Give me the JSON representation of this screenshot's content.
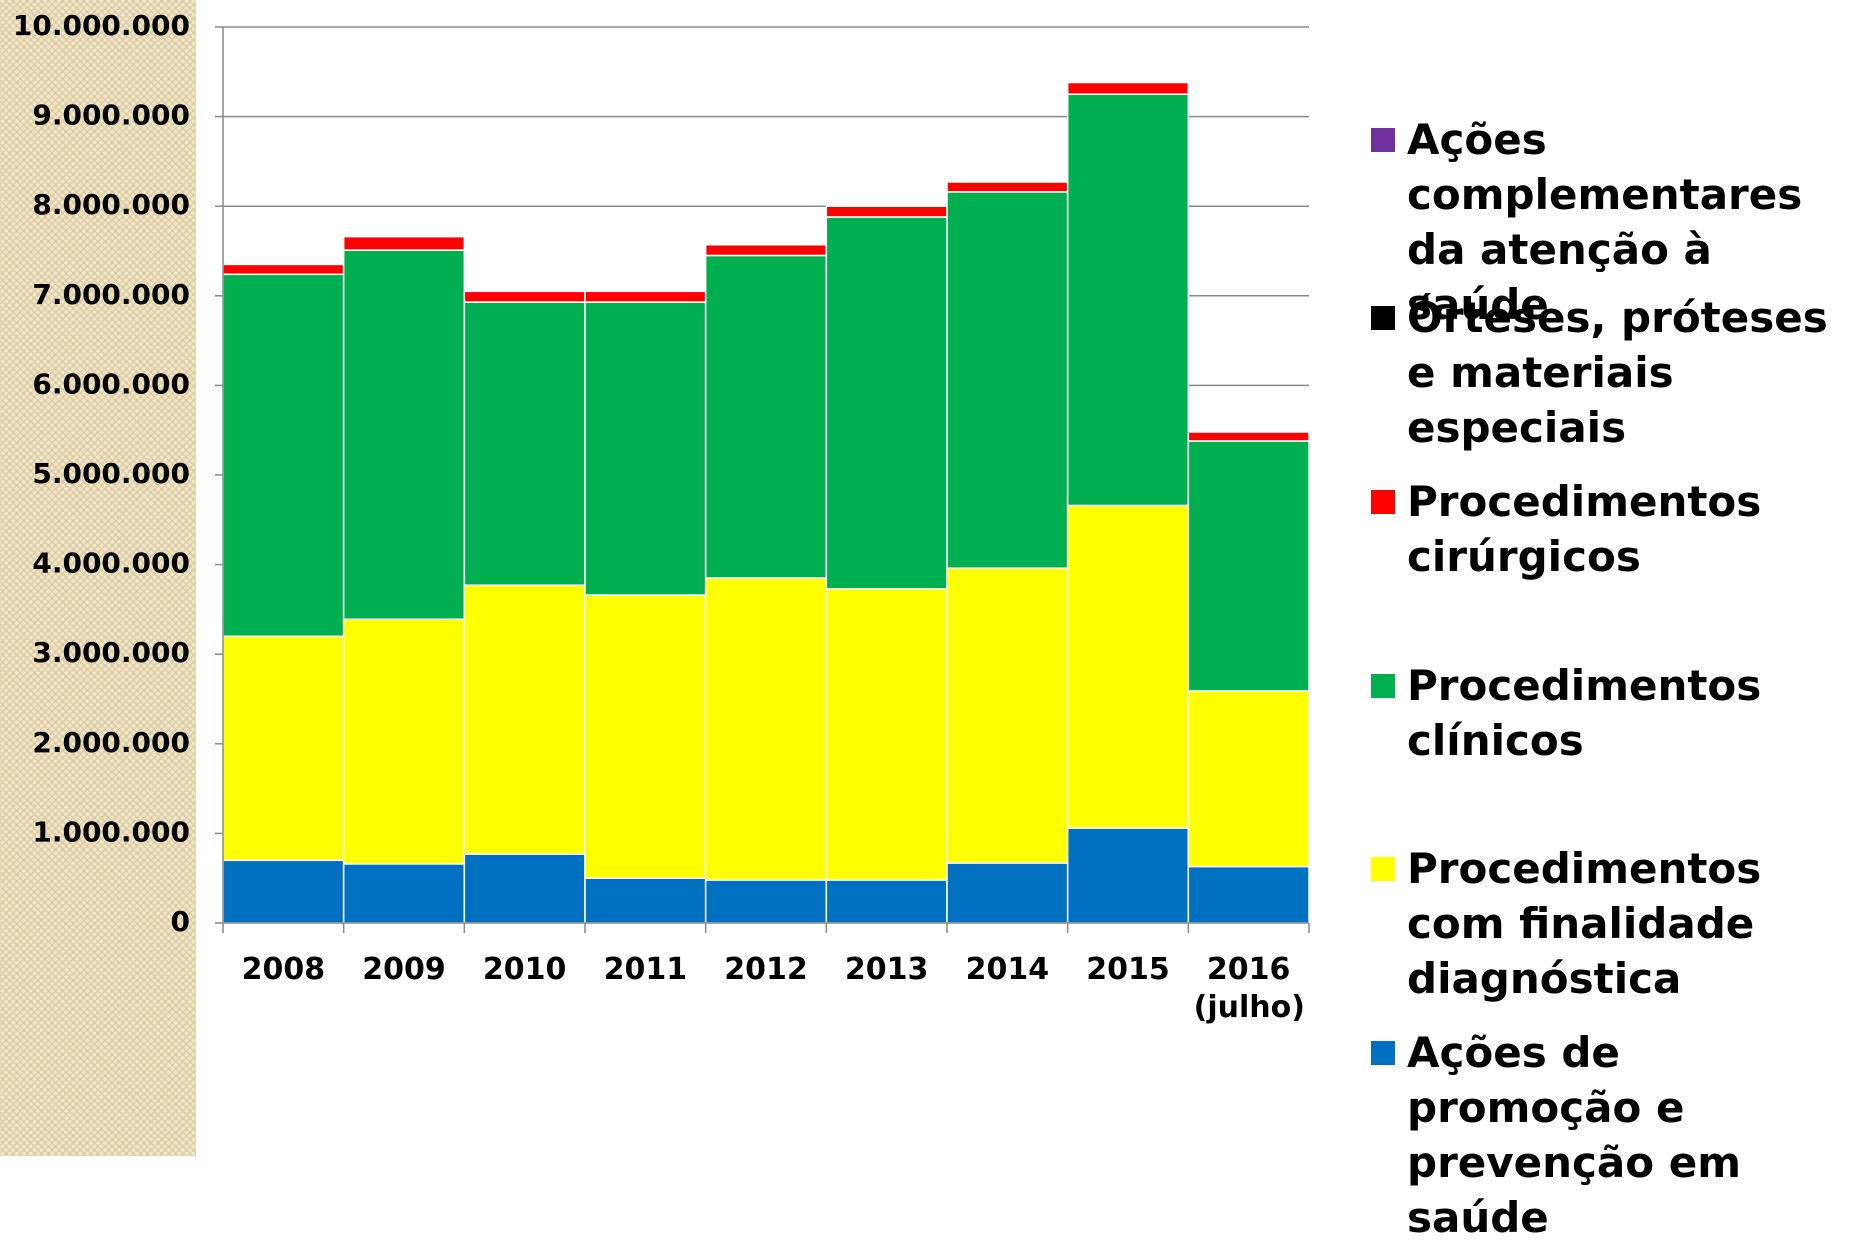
{
  "chart_data": {
    "type": "stacked_bar",
    "categories": [
      "2008",
      "2009",
      "2010",
      "2011",
      "2012",
      "2013",
      "2014",
      "2015",
      "2016 (julho)"
    ],
    "series": [
      {
        "name": "Ações de promoção e prevenção em saúde",
        "color": "#0070c0",
        "values": [
          700000,
          660000,
          770000,
          500000,
          480000,
          480000,
          670000,
          1060000,
          630000
        ]
      },
      {
        "name": "Procedimentos com finalidade diagnóstica",
        "color": "#ffff00",
        "values": [
          2500000,
          2730000,
          3000000,
          3160000,
          3370000,
          3250000,
          3290000,
          3600000,
          1960000
        ]
      },
      {
        "name": "Procedimentos clínicos",
        "color": "#00b050",
        "values": [
          4040000,
          4120000,
          3160000,
          3270000,
          3600000,
          4150000,
          4200000,
          4590000,
          2790000
        ]
      },
      {
        "name": "Procedimentos cirúrgicos",
        "color": "#ff0000",
        "values": [
          110000,
          150000,
          120000,
          120000,
          120000,
          120000,
          110000,
          130000,
          100000
        ]
      },
      {
        "name": "Órteses, próteses e materiais especiais",
        "color": "#000000",
        "values": [
          0,
          0,
          0,
          0,
          0,
          0,
          0,
          0,
          0
        ]
      },
      {
        "name": "Ações complementares da atenção à saúde",
        "color": "#7030a0",
        "values": [
          0,
          0,
          0,
          0,
          0,
          0,
          0,
          0,
          0
        ]
      }
    ],
    "ylim": [
      0,
      10000000
    ],
    "yticks": [
      0,
      {
        "value": 1000000,
        "label": "1.000.000"
      },
      {
        "value": 2000000,
        "label": "2.000.000"
      },
      {
        "value": 3000000,
        "label": "3.000.000"
      },
      {
        "value": 4000000,
        "label": "4.000.000"
      },
      {
        "value": 5000000,
        "label": "5.000.000"
      },
      {
        "value": 6000000,
        "label": "6.000.000"
      },
      {
        "value": 7000000,
        "label": "7.000.000"
      },
      {
        "value": 8000000,
        "label": "8.000.000"
      },
      {
        "value": 9000000,
        "label": "9.000.000"
      },
      {
        "value": 10000000,
        "label": "10.000.000"
      }
    ],
    "grid": true,
    "legend": "right"
  }
}
